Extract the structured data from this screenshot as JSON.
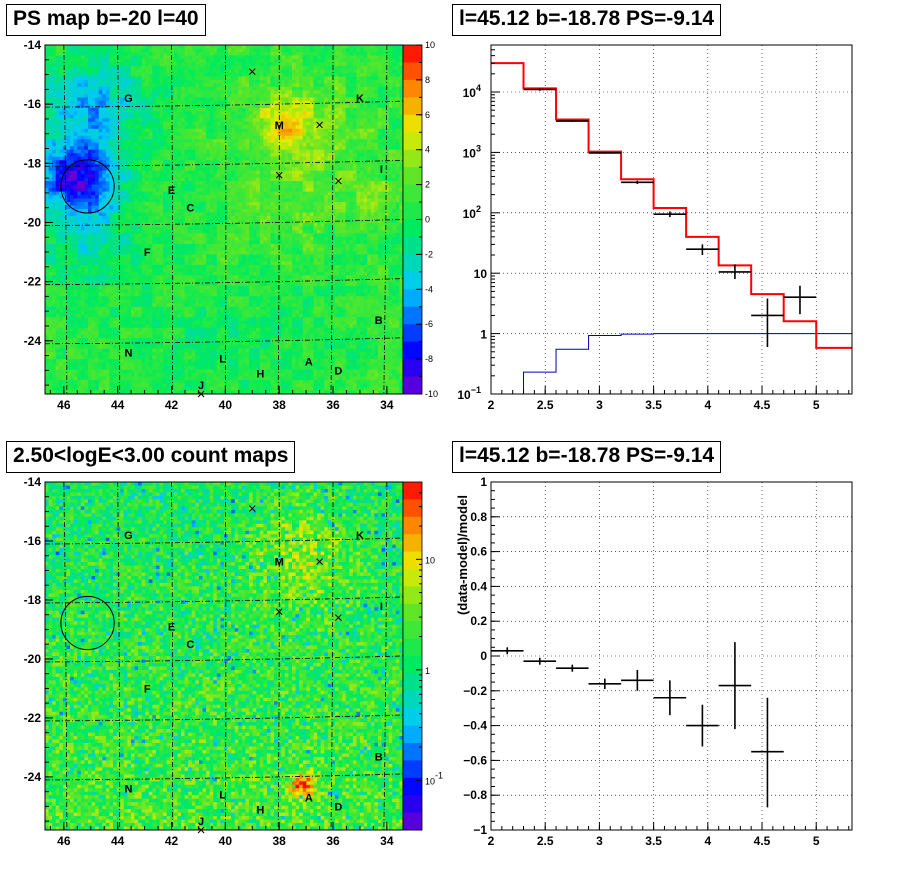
{
  "chart_data": [
    {
      "type": "heatmap",
      "title": "PS map b=-20 l=40",
      "xlim": [
        46.7,
        33.4
      ],
      "ylim": [
        -25.8,
        -14
      ],
      "x_ticks": [
        46,
        44,
        42,
        40,
        38,
        36,
        34
      ],
      "y_ticks": [
        -14,
        -16,
        -18,
        -20,
        -22,
        -24
      ],
      "colorbar": {
        "min": -10,
        "max": 10,
        "ticks": [
          10,
          8,
          6,
          4,
          2,
          0,
          -2,
          -4,
          -6,
          -8,
          -10
        ]
      },
      "labels": [
        {
          "text": "G",
          "l": 43.6,
          "b": -15.8
        },
        {
          "text": "K",
          "l": 35.0,
          "b": -15.8
        },
        {
          "text": "M",
          "l": 38.0,
          "b": -16.7
        },
        {
          "text": "E",
          "l": 42.0,
          "b": -18.9
        },
        {
          "text": "C",
          "l": 41.3,
          "b": -19.5
        },
        {
          "text": "I",
          "l": 34.2,
          "b": -18.2
        },
        {
          "text": "F",
          "l": 42.9,
          "b": -21.0
        },
        {
          "text": "B",
          "l": 34.3,
          "b": -23.3
        },
        {
          "text": "N",
          "l": 43.6,
          "b": -24.4
        },
        {
          "text": "L",
          "l": 40.1,
          "b": -24.6
        },
        {
          "text": "A",
          "l": 36.9,
          "b": -24.7
        },
        {
          "text": "D",
          "l": 35.8,
          "b": -25.0
        },
        {
          "text": "H",
          "l": 38.7,
          "b": -25.1
        },
        {
          "text": "J",
          "l": 40.9,
          "b": -25.5
        }
      ],
      "crosses": [
        {
          "l": 39.0,
          "b": -14.9
        },
        {
          "l": 36.5,
          "b": -16.7
        },
        {
          "l": 38.0,
          "b": -18.4
        },
        {
          "l": 35.8,
          "b": -18.6
        },
        {
          "l": 40.9,
          "b": -25.8
        }
      ],
      "circle": {
        "l": 45.12,
        "b": -18.78,
        "r": 0.45
      }
    },
    {
      "type": "line",
      "title": "l=45.12 b=-18.78 PS=-9.14",
      "xlim": [
        2,
        5.33
      ],
      "ylim": [
        0.1,
        60000
      ],
      "yscale": "log",
      "x_ticks": [
        "2",
        "2.5",
        "3",
        "3.5",
        "4",
        "4.5",
        "5"
      ],
      "y_ticks": [
        {
          "v": 10000,
          "label": "10",
          "exp": "4"
        },
        {
          "v": 1000,
          "label": "10",
          "exp": "3"
        },
        {
          "v": 100,
          "label": "10",
          "exp": "2"
        },
        {
          "v": 10,
          "label": "10",
          "exp": ""
        },
        {
          "v": 1,
          "label": "1",
          "exp": ""
        },
        {
          "v": 0.1,
          "label": "10",
          "exp": "−1"
        }
      ],
      "grid": true,
      "data_points": [
        {
          "x": 2.45,
          "xerr": 0.15,
          "y": 11000,
          "ylo": 10500,
          "yhi": 11500
        },
        {
          "x": 2.75,
          "xerr": 0.15,
          "y": 3300,
          "ylo": 3200,
          "yhi": 3400
        },
        {
          "x": 3.05,
          "xerr": 0.15,
          "y": 980,
          "ylo": 950,
          "yhi": 1010
        },
        {
          "x": 3.35,
          "xerr": 0.15,
          "y": 320,
          "ylo": 300,
          "yhi": 340
        },
        {
          "x": 3.65,
          "xerr": 0.15,
          "y": 95,
          "ylo": 85,
          "yhi": 105
        },
        {
          "x": 3.95,
          "xerr": 0.15,
          "y": 25,
          "ylo": 20,
          "yhi": 30
        },
        {
          "x": 4.25,
          "xerr": 0.15,
          "y": 10.5,
          "ylo": 8,
          "yhi": 14
        },
        {
          "x": 4.55,
          "xerr": 0.15,
          "y": 2.0,
          "ylo": 0.6,
          "yhi": 3.8
        },
        {
          "x": 4.85,
          "xerr": 0.15,
          "y": 4.0,
          "ylo": 2.1,
          "yhi": 6.2
        }
      ],
      "model_edges": [
        2.0,
        2.3,
        2.6,
        2.9,
        3.2,
        3.5,
        3.8,
        4.1,
        4.4,
        4.7,
        5.0,
        5.33
      ],
      "model_values": [
        30000,
        11500,
        3500,
        1030,
        360,
        120,
        40,
        13.5,
        4.5,
        1.6,
        0.58
      ],
      "bkg_edges": [
        2.0,
        2.3,
        2.6,
        2.9,
        3.2,
        3.5,
        3.8,
        4.1,
        4.4,
        4.7,
        5.0,
        5.33
      ],
      "bkg_values": [
        0.07,
        0.23,
        0.55,
        0.93,
        0.98,
        1.0,
        1.0,
        1.0,
        1.0,
        1.0,
        1.0
      ],
      "colors": {
        "model": "#ff0000",
        "data": "#000000",
        "background": "#0000b0"
      }
    },
    {
      "type": "heatmap",
      "title": "2.50<logE<3.00 count maps",
      "xlim": [
        46.7,
        33.4
      ],
      "ylim": [
        -25.8,
        -14
      ],
      "x_ticks": [
        46,
        44,
        42,
        40,
        38,
        36,
        34
      ],
      "y_ticks": [
        -14,
        -16,
        -18,
        -20,
        -22,
        -24
      ],
      "colorbar": {
        "scale": "log",
        "ticks": [
          {
            "v": 10,
            "label": "10",
            "exp": ""
          },
          {
            "v": 1,
            "label": "1",
            "exp": ""
          },
          {
            "v": 0.1,
            "label": "10",
            "exp": "-1"
          }
        ]
      },
      "labels": [
        {
          "text": "G",
          "l": 43.6,
          "b": -15.8
        },
        {
          "text": "K",
          "l": 35.0,
          "b": -15.8
        },
        {
          "text": "M",
          "l": 38.0,
          "b": -16.7
        },
        {
          "text": "E",
          "l": 42.0,
          "b": -18.9
        },
        {
          "text": "C",
          "l": 41.3,
          "b": -19.5
        },
        {
          "text": "I",
          "l": 34.2,
          "b": -18.2
        },
        {
          "text": "F",
          "l": 42.9,
          "b": -21.0
        },
        {
          "text": "B",
          "l": 34.3,
          "b": -23.3
        },
        {
          "text": "N",
          "l": 43.6,
          "b": -24.4
        },
        {
          "text": "L",
          "l": 40.1,
          "b": -24.6
        },
        {
          "text": "A",
          "l": 36.9,
          "b": -24.7
        },
        {
          "text": "D",
          "l": 35.8,
          "b": -25.0
        },
        {
          "text": "H",
          "l": 38.7,
          "b": -25.1
        },
        {
          "text": "J",
          "l": 40.9,
          "b": -25.5
        }
      ],
      "crosses": [
        {
          "l": 39.0,
          "b": -14.9
        },
        {
          "l": 36.5,
          "b": -16.7
        },
        {
          "l": 38.0,
          "b": -18.4
        },
        {
          "l": 35.8,
          "b": -18.6
        },
        {
          "l": 40.9,
          "b": -25.8
        }
      ],
      "circle": {
        "l": 45.12,
        "b": -18.78,
        "r": 0.45
      }
    },
    {
      "type": "scatter",
      "title": "l=45.12 b=-18.78 PS=-9.14",
      "ylabel": "(data-model)/model",
      "xlim": [
        2,
        5.33
      ],
      "ylim": [
        -1,
        1
      ],
      "x_ticks": [
        "2",
        "2.5",
        "3",
        "3.5",
        "4",
        "4.5",
        "5"
      ],
      "y_ticks": [
        "1",
        "0.8",
        "0.6",
        "0.4",
        "0.2",
        "0",
        "−0.2",
        "−0.4",
        "−0.6",
        "−0.8",
        "−1"
      ],
      "grid": true,
      "points": [
        {
          "x": 2.15,
          "xerr": 0.15,
          "y": 0.03,
          "ylo": 0.01,
          "yhi": 0.05
        },
        {
          "x": 2.45,
          "xerr": 0.15,
          "y": -0.03,
          "ylo": -0.05,
          "yhi": -0.01
        },
        {
          "x": 2.75,
          "xerr": 0.15,
          "y": -0.07,
          "ylo": -0.09,
          "yhi": -0.05
        },
        {
          "x": 3.05,
          "xerr": 0.15,
          "y": -0.16,
          "ylo": -0.19,
          "yhi": -0.13
        },
        {
          "x": 3.35,
          "xerr": 0.15,
          "y": -0.14,
          "ylo": -0.2,
          "yhi": -0.08
        },
        {
          "x": 3.65,
          "xerr": 0.15,
          "y": -0.24,
          "ylo": -0.34,
          "yhi": -0.14
        },
        {
          "x": 3.95,
          "xerr": 0.15,
          "y": -0.4,
          "ylo": -0.52,
          "yhi": -0.28
        },
        {
          "x": 4.25,
          "xerr": 0.15,
          "y": -0.17,
          "ylo": -0.42,
          "yhi": 0.08
        },
        {
          "x": 4.55,
          "xerr": 0.15,
          "y": -0.55,
          "ylo": -0.87,
          "yhi": -0.24
        }
      ]
    }
  ]
}
